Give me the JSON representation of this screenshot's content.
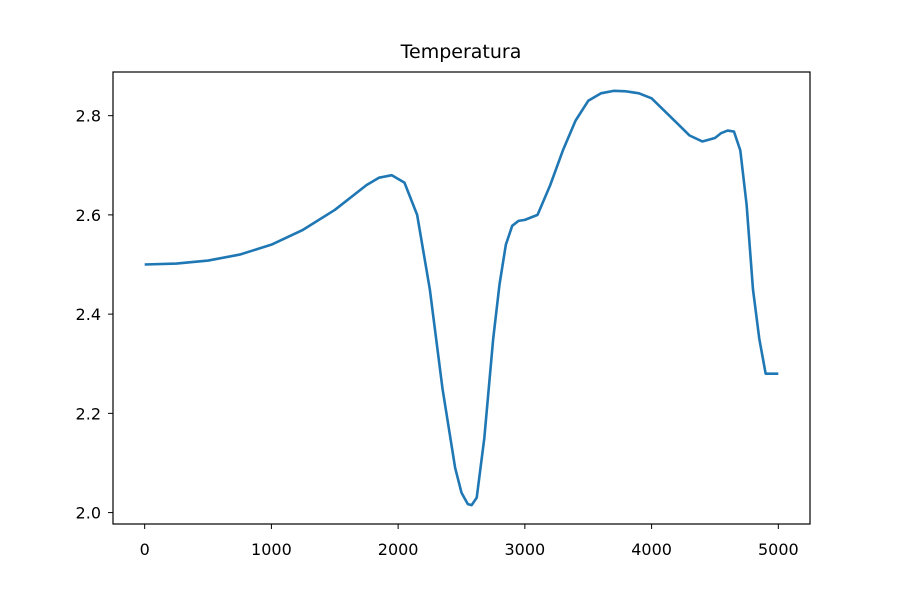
{
  "chart_data": {
    "type": "line",
    "title": "Temperatura",
    "xlabel": "",
    "ylabel": "",
    "xlim": [
      -250,
      5250
    ],
    "ylim": [
      1.977,
      2.888
    ],
    "x_ticks": [
      0,
      1000,
      2000,
      3000,
      4000,
      5000
    ],
    "x_tick_labels": [
      "0",
      "1000",
      "2000",
      "3000",
      "4000",
      "5000"
    ],
    "y_ticks": [
      2.0,
      2.2,
      2.4,
      2.6,
      2.8
    ],
    "y_tick_labels": [
      "2.0",
      "2.2",
      "2.4",
      "2.6",
      "2.8"
    ],
    "grid": false,
    "line_color": "#1f77b4",
    "series": [
      {
        "x": [
          0,
          250,
          500,
          750,
          1000,
          1250,
          1500,
          1750,
          1850,
          1950,
          2050,
          2150,
          2250,
          2350,
          2450,
          2500,
          2550,
          2580,
          2620,
          2680,
          2750,
          2800,
          2850,
          2900,
          2950,
          3000,
          3100,
          3200,
          3300,
          3400,
          3500,
          3600,
          3700,
          3800,
          3900,
          4000,
          4100,
          4200,
          4300,
          4400,
          4500,
          4550,
          4600,
          4650,
          4700,
          4750,
          4800,
          4850,
          4900,
          4950,
          5000
        ],
        "y": [
          2.5,
          2.502,
          2.508,
          2.52,
          2.54,
          2.57,
          2.61,
          2.66,
          2.675,
          2.68,
          2.665,
          2.6,
          2.45,
          2.25,
          2.09,
          2.04,
          2.017,
          2.015,
          2.03,
          2.15,
          2.35,
          2.46,
          2.54,
          2.578,
          2.588,
          2.59,
          2.6,
          2.66,
          2.73,
          2.79,
          2.83,
          2.845,
          2.85,
          2.849,
          2.845,
          2.835,
          2.81,
          2.785,
          2.76,
          2.748,
          2.755,
          2.765,
          2.77,
          2.768,
          2.73,
          2.62,
          2.45,
          2.35,
          2.28,
          2.28,
          2.28
        ]
      }
    ]
  }
}
